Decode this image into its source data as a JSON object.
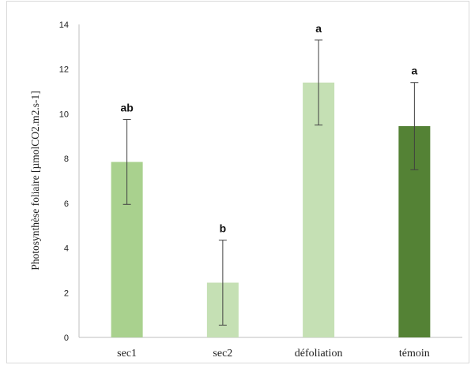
{
  "chart_data": {
    "type": "bar",
    "ylabel": "Photosynthèse foliaire [µmolCO2.m2.s-1]",
    "xlabel": "",
    "ylim": [
      0,
      14
    ],
    "yticks": [
      "0",
      "2",
      "4",
      "6",
      "8",
      "10",
      "12",
      "14"
    ],
    "grid": false,
    "categories": [
      "sec1",
      "sec2",
      "défoliation",
      "témoin"
    ],
    "values": [
      7.85,
      2.45,
      11.4,
      9.45
    ],
    "error": [
      1.9,
      1.9,
      1.9,
      1.95
    ],
    "significance": [
      "ab",
      "b",
      "a",
      "a"
    ],
    "colors": [
      "#a9d18e",
      "#c5e0b4",
      "#c5e0b4",
      "#548235"
    ],
    "error_color": "#404040"
  }
}
